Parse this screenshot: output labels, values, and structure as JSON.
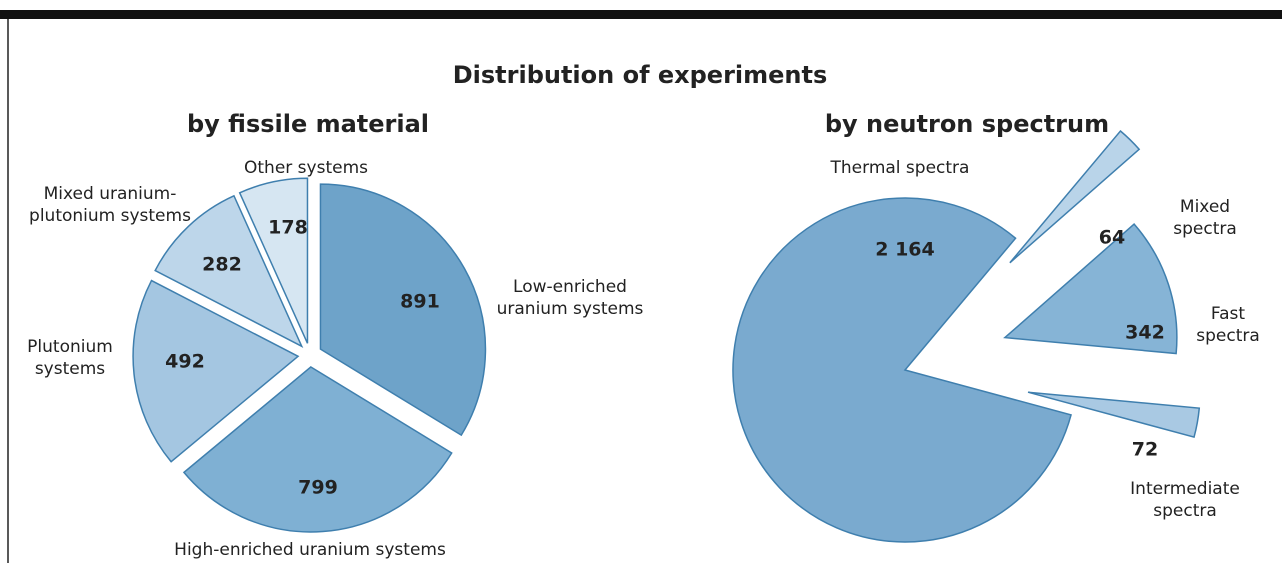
{
  "title": "Distribution of experiments",
  "chart_data": [
    {
      "type": "pie",
      "title": "by fissile material",
      "categories": [
        "Low-enriched uranium systems",
        "High-enriched uranium systems",
        "Plutonium systems",
        "Mixed uranium-plutonium systems",
        "Other systems"
      ],
      "values": [
        891,
        799,
        492,
        282,
        178
      ],
      "colors": [
        "#6ea3c9",
        "#7fb0d3",
        "#a4c6e1",
        "#bdd6ea",
        "#d6e6f2"
      ]
    },
    {
      "type": "pie",
      "title": "by neutron spectrum",
      "categories": [
        "Mixed spectra",
        "Fast spectra",
        "Intermediate spectra",
        "Thermal spectra"
      ],
      "values": [
        64,
        342,
        72,
        2164
      ],
      "value_labels": [
        "64",
        "342",
        "72",
        "2 164"
      ],
      "colors": [
        "#b9d4e9",
        "#86b4d6",
        "#a9c9e3",
        "#7aaacf"
      ]
    }
  ]
}
